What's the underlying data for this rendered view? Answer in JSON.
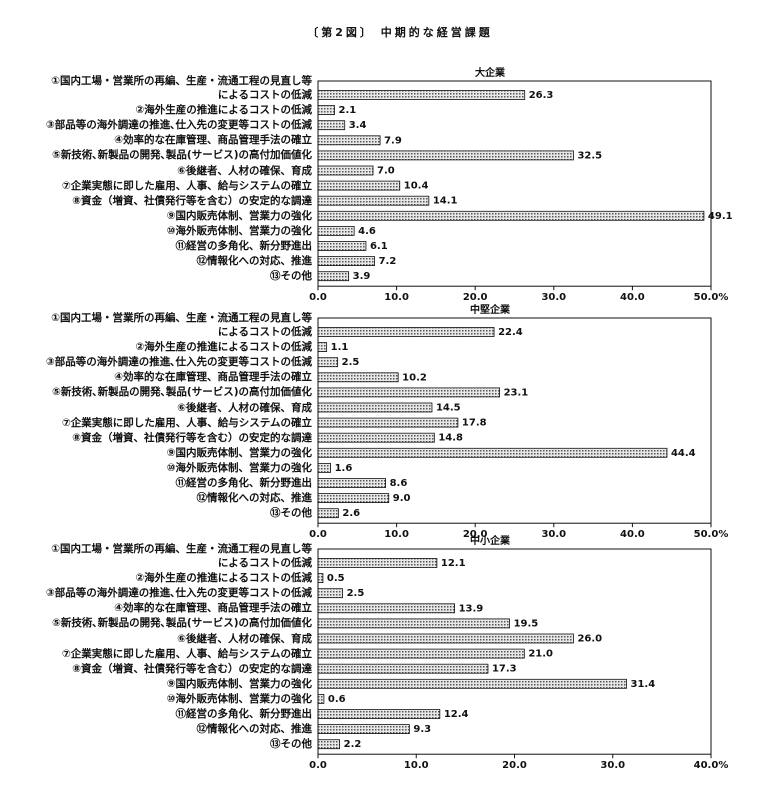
{
  "title": "〔第2図〕 中期的な経営課題",
  "chart_data": [
    {
      "type": "bar",
      "orientation": "horizontal",
      "title": "大企業",
      "color": "#9a9a9a",
      "categories": [
        "①国内工場・営業所の再編、生産・流通工程の見直し等\nによるコストの低減",
        "②海外生産の推進によるコストの低減",
        "③部品等の海外調達の推進､仕入先の変更等コストの低減",
        "④効率的な在庫管理、商品管理手法の確立",
        "⑤新技術､新製品の開発､製品(サービス)の高付加価値化",
        "⑥後継者、人材の確保、育成",
        "⑦企業実態に即した雇用、人事、給与システムの確立",
        "⑧資金（増資、社債発行等を含む）の安定的な調達",
        "⑨国内販売体制、営業力の強化",
        "⑩海外販売体制、営業力の強化",
        "⑪経営の多角化、新分野進出",
        "⑫情報化への対応、推進",
        "⑬その他"
      ],
      "values": [
        26.3,
        2.1,
        3.4,
        7.9,
        32.5,
        7.0,
        10.4,
        14.1,
        49.1,
        4.6,
        6.1,
        7.2,
        3.9
      ],
      "value_labels": [
        "26.3",
        "2.1",
        "3.4",
        "7.9",
        "32.5",
        "7.0",
        "10.4",
        "14.1",
        "49.1",
        "4.6",
        "6.1",
        "7.2",
        "3.9"
      ],
      "xlim": [
        0,
        50
      ],
      "xticks": [
        {
          "value": 0,
          "label": "0.0"
        },
        {
          "value": 10,
          "label": "10.0"
        },
        {
          "value": 20,
          "label": "20.0"
        },
        {
          "value": 30,
          "label": "30.0"
        },
        {
          "value": 40,
          "label": "40.0"
        },
        {
          "value": 50,
          "label": "50.0%"
        }
      ]
    },
    {
      "type": "bar",
      "orientation": "horizontal",
      "title": "中堅企業",
      "color": "#9a9a9a",
      "categories": [
        "①国内工場・営業所の再編、生産・流通工程の見直し等\nによるコストの低減",
        "②海外生産の推進によるコストの低減",
        "③部品等の海外調達の推進､仕入先の変更等コストの低減",
        "④効率的な在庫管理、商品管理手法の確立",
        "⑤新技術､新製品の開発､製品(サービス)の高付加価値化",
        "⑥後継者、人材の確保、育成",
        "⑦企業実態に即した雇用、人事、給与システムの確立",
        "⑧資金（増資、社債発行等を含む）の安定的な調達",
        "⑨国内販売体制、営業力の強化",
        "⑩海外販売体制、営業力の強化",
        "⑪経営の多角化、新分野進出",
        "⑫情報化への対応、推進",
        "⑬その他"
      ],
      "values": [
        22.4,
        1.1,
        2.5,
        10.2,
        23.1,
        14.5,
        17.8,
        14.8,
        44.4,
        1.6,
        8.6,
        9.0,
        2.6
      ],
      "value_labels": [
        "22.4",
        "1.1",
        "2.5",
        "10.2",
        "23.1",
        "14.5",
        "17.8",
        "14.8",
        "44.4",
        "1.6",
        "8.6",
        "9.0",
        "2.6"
      ],
      "xlim": [
        0,
        50
      ],
      "xticks": [
        {
          "value": 0,
          "label": "0.0"
        },
        {
          "value": 10,
          "label": "10.0"
        },
        {
          "value": 20,
          "label": "20.0"
        },
        {
          "value": 30,
          "label": "30.0"
        },
        {
          "value": 40,
          "label": "40.0"
        },
        {
          "value": 50,
          "label": "50.0%"
        }
      ]
    },
    {
      "type": "bar",
      "orientation": "horizontal",
      "title": "中小企業",
      "color": "#9a9a9a",
      "categories": [
        "①国内工場・営業所の再編、生産・流通工程の見直し等\nによるコストの低減",
        "②海外生産の推進によるコストの低減",
        "③部品等の海外調達の推進､仕入先の変更等コストの低減",
        "④効率的な在庫管理、商品管理手法の確立",
        "⑤新技術､新製品の開発､製品(サービス)の高付加価値化",
        "⑥後継者、人材の確保、育成",
        "⑦企業実態に即した雇用、人事、給与システムの確立",
        "⑧資金（増資、社債発行等を含む）の安定的な調達",
        "⑨国内販売体制、営業力の強化",
        "⑩海外販売体制、営業力の強化",
        "⑪経営の多角化、新分野進出",
        "⑫情報化への対応、推進",
        "⑬その他"
      ],
      "values": [
        12.1,
        0.5,
        2.5,
        13.9,
        19.5,
        26.0,
        21.0,
        17.3,
        31.4,
        0.6,
        12.4,
        9.3,
        2.2
      ],
      "value_labels": [
        "12.1",
        "0.5",
        "2.5",
        "13.9",
        "19.5",
        "26.0",
        "21.0",
        "17.3",
        "31.4",
        "0.6",
        "12.4",
        "9.3",
        "2.2"
      ],
      "xlim": [
        0,
        40
      ],
      "xticks": [
        {
          "value": 0,
          "label": "0.0"
        },
        {
          "value": 10,
          "label": "10.0"
        },
        {
          "value": 20,
          "label": "20.0"
        },
        {
          "value": 30,
          "label": "30.0"
        },
        {
          "value": 40,
          "label": "40.0%"
        }
      ]
    }
  ]
}
